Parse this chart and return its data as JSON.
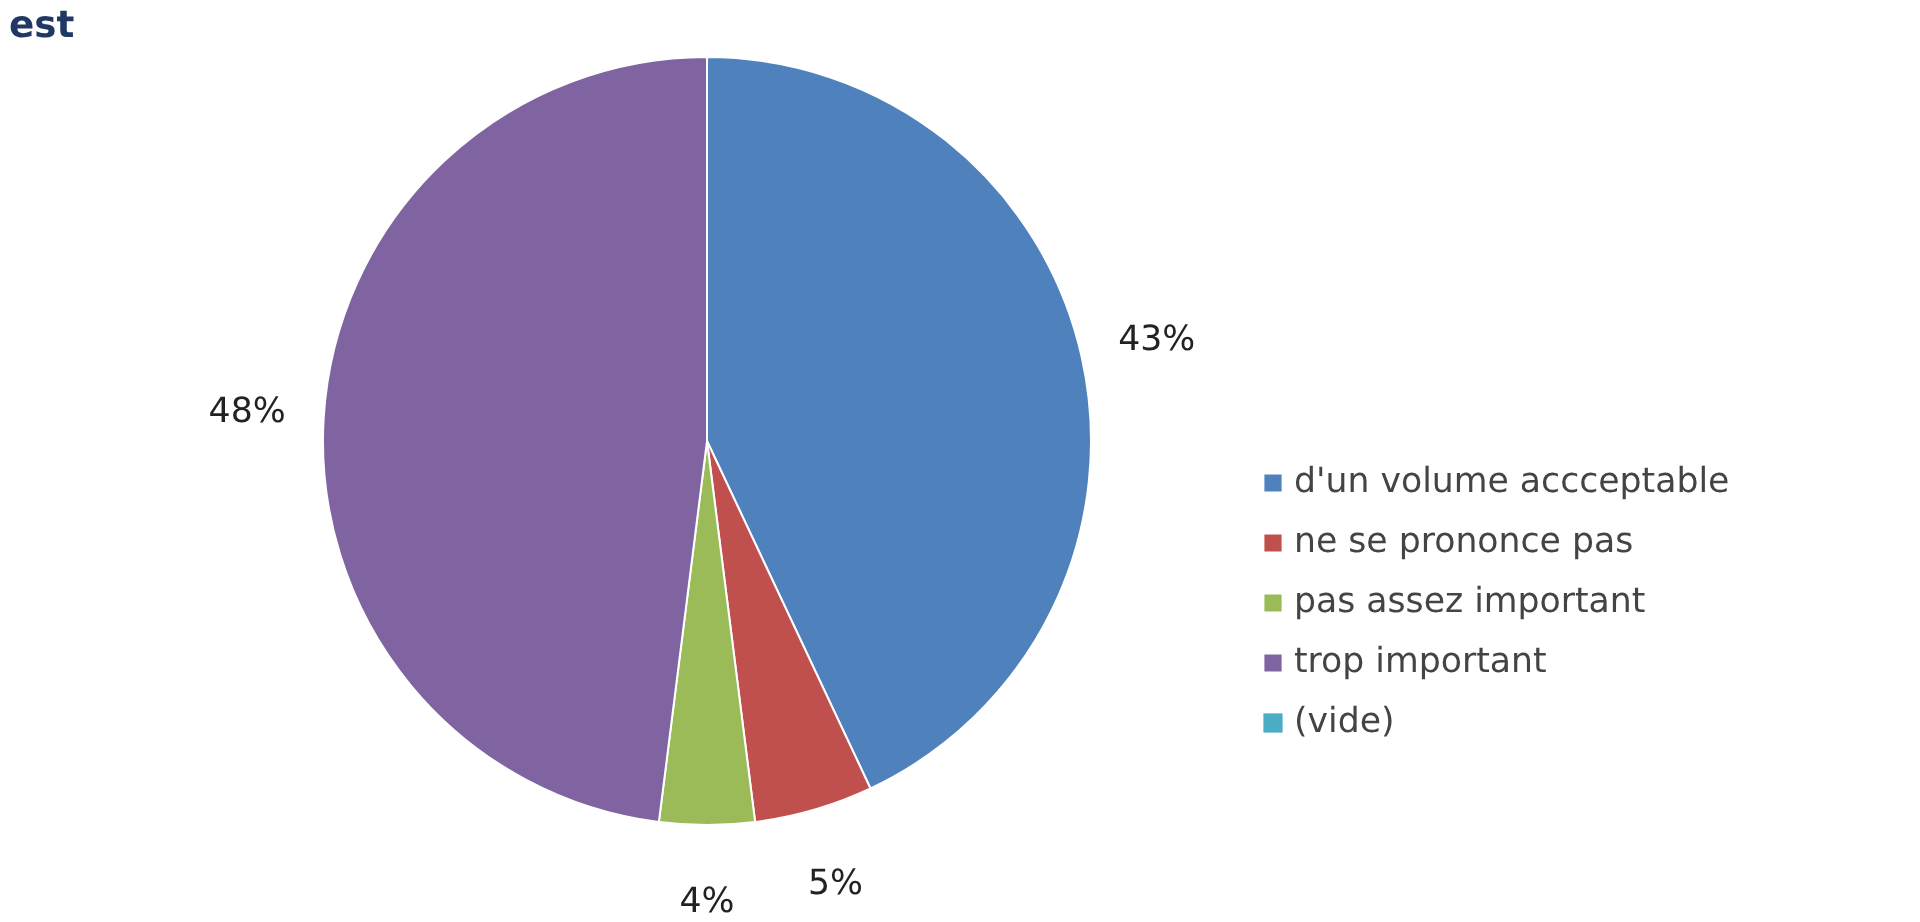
{
  "chart_data": {
    "type": "pie",
    "title": "est",
    "categories": [
      "d'un volume accceptable",
      "ne se prononce pas",
      "pas assez important",
      "trop important",
      "(vide)"
    ],
    "values": [
      43,
      5,
      4,
      48,
      0
    ],
    "value_labels": [
      "43%",
      "5%",
      "4%",
      "48%",
      null
    ],
    "colors": [
      "#4f81bd",
      "#c0504d",
      "#9bbb59",
      "#8064a2",
      "#4bacc6"
    ],
    "legend": "right"
  }
}
